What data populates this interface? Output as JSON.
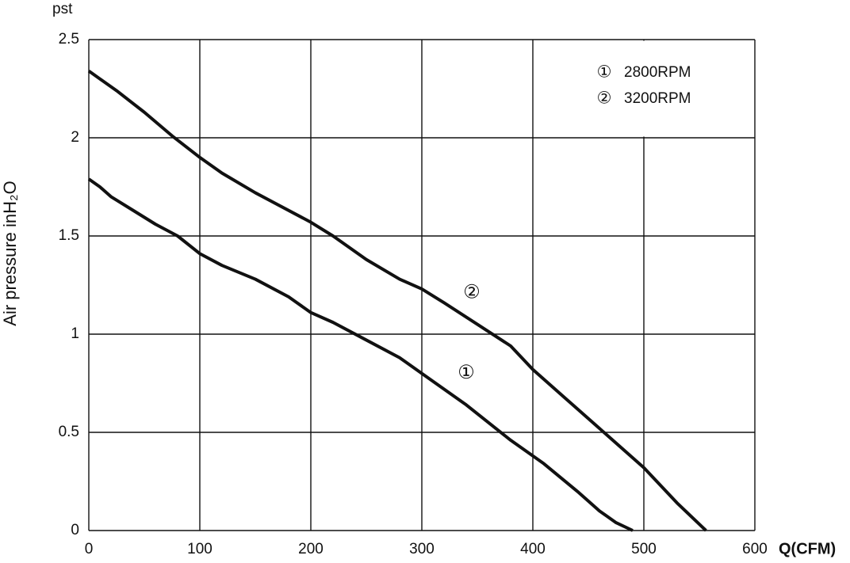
{
  "chart_data": {
    "type": "line",
    "y_unit_label": "pst",
    "y_label": "Air pressure inH₂O",
    "x_label": "Q(CFM)",
    "xlim": [
      0,
      600
    ],
    "xticks": [
      0,
      100,
      200,
      300,
      400,
      500,
      600
    ],
    "ylim": [
      0,
      2.5
    ],
    "yticks": [
      0,
      0.5,
      1,
      1.5,
      2,
      2.5
    ],
    "grid": true,
    "legend": "upper right",
    "series": [
      {
        "name": "2800RPM",
        "marker": "①",
        "color": "#111111",
        "x": [
          0,
          10,
          20,
          40,
          60,
          80,
          100,
          120,
          150,
          180,
          200,
          220,
          250,
          280,
          300,
          340,
          380,
          410,
          440,
          460,
          475,
          490
        ],
        "values": [
          1.79,
          1.75,
          1.7,
          1.63,
          1.56,
          1.5,
          1.41,
          1.35,
          1.28,
          1.19,
          1.11,
          1.06,
          0.97,
          0.88,
          0.8,
          0.64,
          0.46,
          0.34,
          0.2,
          0.1,
          0.04,
          0
        ]
      },
      {
        "name": "3200RPM",
        "marker": "②",
        "color": "#111111",
        "x": [
          0,
          25,
          50,
          75,
          100,
          120,
          150,
          200,
          220,
          250,
          280,
          300,
          320,
          350,
          380,
          400,
          430,
          460,
          500,
          530,
          556
        ],
        "values": [
          2.34,
          2.24,
          2.13,
          2.01,
          1.9,
          1.82,
          1.72,
          1.57,
          1.5,
          1.38,
          1.28,
          1.23,
          1.16,
          1.05,
          0.94,
          0.82,
          0.67,
          0.52,
          0.32,
          0.14,
          0
        ]
      }
    ]
  }
}
